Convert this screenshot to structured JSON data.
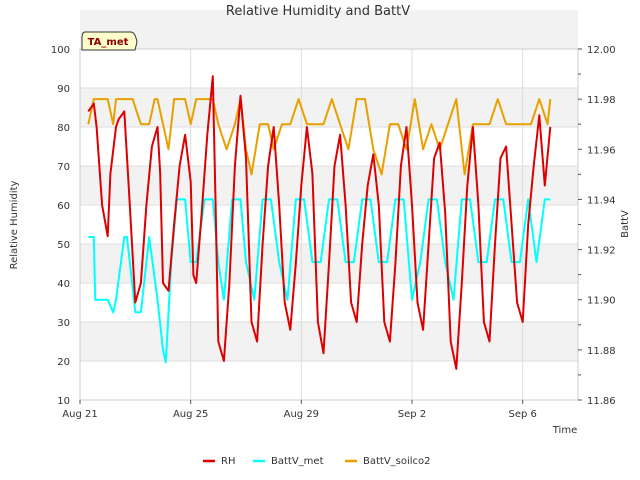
{
  "chart_data": {
    "type": "line",
    "title": "Relative Humidity and BattV",
    "badge": "TA_met",
    "xlabel": "Time",
    "ylabel_left": "Relative Humidity",
    "ylabel_right": "BattV",
    "x_ticks": [
      "Aug 21",
      "Aug 25",
      "Aug 29",
      "Sep 2",
      "Sep 6"
    ],
    "x_tick_days": [
      0,
      4,
      8,
      12,
      16
    ],
    "xlim_days": [
      0,
      18
    ],
    "ylim_left": [
      10,
      100
    ],
    "y_ticks_left": [
      "10",
      "20",
      "30",
      "40",
      "50",
      "60",
      "70",
      "80",
      "90",
      "100"
    ],
    "ylim_right": [
      11.86,
      12.0
    ],
    "y_ticks_right": [
      "11.86",
      "11.88",
      "11.90",
      "11.92",
      "11.94",
      "11.96",
      "11.98",
      "12.00"
    ],
    "grid": true,
    "legend_position": "bottom",
    "series": [
      {
        "name": "RH",
        "axis": "left",
        "color": "#dd0000",
        "x": [
          0.3,
          0.5,
          0.6,
          0.8,
          1.0,
          1.1,
          1.3,
          1.4,
          1.6,
          1.8,
          2.0,
          2.2,
          2.4,
          2.6,
          2.8,
          2.9,
          3.0,
          3.2,
          3.4,
          3.6,
          3.8,
          4.0,
          4.1,
          4.2,
          4.4,
          4.6,
          4.8,
          4.9,
          5.0,
          5.2,
          5.4,
          5.6,
          5.8,
          6.0,
          6.2,
          6.4,
          6.6,
          6.8,
          7.0,
          7.2,
          7.4,
          7.6,
          7.8,
          8.0,
          8.2,
          8.4,
          8.6,
          8.8,
          9.0,
          9.2,
          9.4,
          9.6,
          9.8,
          10.0,
          10.2,
          10.4,
          10.6,
          10.8,
          11.0,
          11.2,
          11.4,
          11.6,
          11.8,
          12.0,
          12.2,
          12.4,
          12.6,
          12.8,
          13.0,
          13.2,
          13.4,
          13.6,
          13.8,
          14.0,
          14.2,
          14.4,
          14.6,
          14.8,
          15.0,
          15.2,
          15.4,
          15.6,
          15.8,
          16.0,
          16.2,
          16.4,
          16.6,
          16.8,
          17.0
        ],
        "values": [
          84,
          86,
          80,
          60,
          52,
          68,
          80,
          82,
          84,
          60,
          35,
          40,
          60,
          75,
          80,
          68,
          40,
          38,
          55,
          70,
          78,
          66,
          42,
          40,
          58,
          78,
          93,
          60,
          25,
          20,
          40,
          70,
          88,
          72,
          30,
          25,
          50,
          70,
          80,
          60,
          35,
          28,
          45,
          65,
          80,
          68,
          30,
          22,
          45,
          70,
          78,
          60,
          35,
          30,
          50,
          65,
          73,
          60,
          30,
          25,
          45,
          70,
          80,
          60,
          35,
          28,
          50,
          72,
          76,
          58,
          25,
          18,
          40,
          65,
          80,
          60,
          30,
          25,
          50,
          72,
          75,
          55,
          35,
          30,
          55,
          70,
          83,
          65,
          80
        ]
      },
      {
        "name": "BattV_met",
        "axis": "right",
        "color": "#00ffff",
        "x": [
          0.3,
          0.5,
          0.55,
          1.0,
          1.2,
          1.3,
          1.6,
          1.7,
          2.0,
          2.2,
          2.5,
          2.8,
          3.0,
          3.1,
          3.3,
          3.5,
          3.8,
          4.0,
          4.2,
          4.5,
          4.8,
          5.0,
          5.2,
          5.5,
          5.8,
          6.0,
          6.3,
          6.6,
          6.9,
          7.2,
          7.5,
          7.8,
          8.1,
          8.4,
          8.7,
          9.0,
          9.3,
          9.6,
          9.9,
          10.2,
          10.5,
          10.8,
          11.1,
          11.4,
          11.7,
          12.0,
          12.3,
          12.6,
          12.9,
          13.2,
          13.5,
          13.8,
          14.1,
          14.4,
          14.7,
          15.0,
          15.3,
          15.6,
          15.9,
          16.2,
          16.5,
          16.8,
          17.0
        ],
        "values": [
          11.925,
          11.925,
          11.9,
          11.9,
          11.895,
          11.9,
          11.925,
          11.925,
          11.895,
          11.895,
          11.925,
          11.9,
          11.88,
          11.875,
          11.915,
          11.94,
          11.94,
          11.915,
          11.915,
          11.94,
          11.94,
          11.915,
          11.9,
          11.94,
          11.94,
          11.915,
          11.9,
          11.94,
          11.94,
          11.915,
          11.9,
          11.94,
          11.94,
          11.915,
          11.915,
          11.94,
          11.94,
          11.915,
          11.915,
          11.94,
          11.94,
          11.915,
          11.915,
          11.94,
          11.94,
          11.9,
          11.915,
          11.94,
          11.94,
          11.915,
          11.9,
          11.94,
          11.94,
          11.915,
          11.915,
          11.94,
          11.94,
          11.915,
          11.915,
          11.94,
          11.915,
          11.94,
          11.94
        ]
      },
      {
        "name": "BattV_soilco2",
        "axis": "right",
        "color": "#e8a000",
        "x": [
          0.3,
          0.5,
          0.6,
          1.0,
          1.2,
          1.3,
          1.6,
          1.9,
          2.2,
          2.5,
          2.7,
          2.8,
          3.0,
          3.2,
          3.4,
          3.6,
          3.8,
          4.0,
          4.2,
          4.5,
          4.8,
          5.0,
          5.3,
          5.6,
          5.8,
          6.0,
          6.2,
          6.5,
          6.8,
          7.0,
          7.3,
          7.6,
          7.9,
          8.2,
          8.5,
          8.8,
          9.1,
          9.4,
          9.7,
          10.0,
          10.3,
          10.6,
          10.9,
          11.2,
          11.5,
          11.8,
          12.1,
          12.4,
          12.7,
          13.0,
          13.3,
          13.6,
          13.9,
          14.2,
          14.5,
          14.8,
          15.1,
          15.4,
          15.7,
          16.0,
          16.3,
          16.6,
          16.9,
          17.0
        ],
        "values": [
          11.97,
          11.98,
          11.98,
          11.98,
          11.97,
          11.98,
          11.98,
          11.98,
          11.97,
          11.97,
          11.98,
          11.98,
          11.97,
          11.96,
          11.98,
          11.98,
          11.98,
          11.97,
          11.98,
          11.98,
          11.98,
          11.97,
          11.96,
          11.97,
          11.98,
          11.96,
          11.95,
          11.97,
          11.97,
          11.96,
          11.97,
          11.97,
          11.98,
          11.97,
          11.97,
          11.97,
          11.98,
          11.97,
          11.96,
          11.98,
          11.98,
          11.96,
          11.95,
          11.97,
          11.97,
          11.96,
          11.98,
          11.96,
          11.97,
          11.96,
          11.97,
          11.98,
          11.95,
          11.97,
          11.97,
          11.97,
          11.98,
          11.97,
          11.97,
          11.97,
          11.97,
          11.98,
          11.97,
          11.98
        ]
      }
    ]
  }
}
